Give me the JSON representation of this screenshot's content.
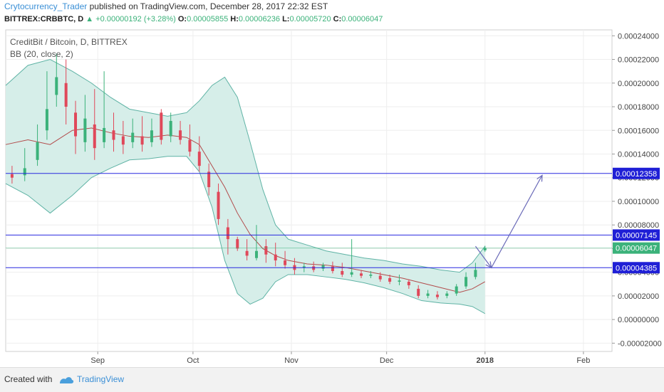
{
  "header": {
    "author": "Crytocurrency_Trader",
    "published": "published on TradingView.com, December 28, 2017 22:32 EST",
    "symbol": "BITTREX:CRBBTC, D",
    "change": "+0.00000192 (+3.28%)",
    "o_label": "O:",
    "o_value": "0.00005855",
    "h_label": "H:",
    "h_value": "0.00006236",
    "l_label": "L:",
    "l_value": "0.00005720",
    "c_label": "C:",
    "c_value": "0.00006047"
  },
  "legend": {
    "pair": "CreditBit / Bitcoin, D, BITTREX",
    "indicator": "BB (20, close, 2)"
  },
  "footer": {
    "created_with": "Created with",
    "brand": "TradingView"
  },
  "colors": {
    "up": "#3bb27a",
    "down": "#e0485a",
    "band_fill": "#d6eee9",
    "band_line": "#5fb3a5",
    "basis": "#b24b4b",
    "hline": "#2929e0",
    "price_line": "#3bb27a",
    "arrow": "#6a6ab8"
  },
  "chart_data": {
    "type": "candlestick",
    "y_axis": {
      "ticks": [
        0.00024,
        0.00022,
        0.0002,
        0.00018,
        0.00016,
        0.00014,
        0.00012,
        0.0001,
        8e-05,
        6e-05,
        4e-05,
        2e-05,
        0.0,
        -2e-05
      ],
      "tick_labels": [
        "0.00024000",
        "0.00022000",
        "0.00020000",
        "0.00018000",
        "0.00016000",
        "0.00014000",
        "0.00012000",
        "0.00010000",
        "0.00008000",
        "0.00006000",
        "0.00004000",
        "0.00002000",
        "0.00000000",
        "-0.00002000"
      ],
      "ylim": [
        -2.7e-05,
        0.000245
      ]
    },
    "x_axis": {
      "labels": [
        "Sep",
        "Oct",
        "Nov",
        "Dec",
        "2018",
        "Feb"
      ],
      "label_days": [
        30,
        60,
        91,
        121,
        152,
        183
      ],
      "xlim": [
        1,
        192
      ]
    },
    "horizontal_lines": [
      {
        "value": 0.00012358,
        "label": "0.00012358"
      },
      {
        "value": 7.145e-05,
        "label": "0.00007145"
      },
      {
        "value": 4.385e-05,
        "label": "0.00004385"
      }
    ],
    "last_price": {
      "value": 6.047e-05,
      "label": "0.00006047"
    },
    "candles": [
      [
        3,
        0.000123,
        0.00012,
        0.00013,
        0.000115
      ],
      [
        7,
        0.000122,
        0.000128,
        0.000145,
        0.000117
      ],
      [
        11,
        0.000135,
        0.00015,
        0.000165,
        0.00013
      ],
      [
        14,
        0.00016,
        0.000178,
        0.00021,
        0.000152
      ],
      [
        17,
        0.00019,
        0.000205,
        0.000225,
        0.00018
      ],
      [
        20,
        0.0002,
        0.00018,
        0.00022,
        0.000165
      ],
      [
        23,
        0.000175,
        0.000155,
        0.000185,
        0.00014
      ],
      [
        26,
        0.00015,
        0.00017,
        0.00019,
        0.000142
      ],
      [
        29,
        0.000165,
        0.000145,
        0.000195,
        0.000135
      ],
      [
        32,
        0.00015,
        0.000162,
        0.00021,
        0.000145
      ],
      [
        35,
        0.00016,
        0.000152,
        0.000175,
        0.000142
      ],
      [
        38,
        0.000155,
        0.000148,
        0.000168,
        0.00014
      ],
      [
        41,
        0.00015,
        0.000158,
        0.00017,
        0.000145
      ],
      [
        44,
        0.000155,
        0.000148,
        0.000172,
        0.000142
      ],
      [
        47,
        0.00015,
        0.00016,
        0.00017,
        0.000146
      ],
      [
        50,
        0.000175,
        0.000152,
        0.000178,
        0.000148
      ],
      [
        53,
        0.000155,
        0.000168,
        0.000175,
        0.00015
      ],
      [
        56,
        0.00016,
        0.000152,
        0.000168,
        0.000148
      ],
      [
        59,
        0.000152,
        0.000142,
        0.000165,
        0.000138
      ],
      [
        62,
        0.000142,
        0.00013,
        0.000155,
        0.000125
      ],
      [
        65,
        0.000125,
        0.000112,
        0.000132,
        0.000105
      ],
      [
        68,
        0.000108,
        8.5e-05,
        0.000115,
        8e-05
      ],
      [
        71,
        7.8e-05,
        6.8e-05,
        8.5e-05,
        5.5e-05
      ],
      [
        74,
        6.8e-05,
        6e-05,
        7e-05,
        5.8e-05
      ],
      [
        77,
        5.8e-05,
        5.4e-05,
        6.8e-05,
        5e-05
      ],
      [
        80,
        5.2e-05,
        5.8e-05,
        8e-05,
        5e-05
      ],
      [
        83,
        6.2e-05,
        5.5e-05,
        6.8e-05,
        4.8e-05
      ],
      [
        86,
        5.5e-05,
        5e-05,
        6.5e-05,
        4.5e-05
      ],
      [
        89,
        5e-05,
        4.6e-05,
        5.8e-05,
        4.3e-05
      ],
      [
        92,
        4.6e-05,
        4.2e-05,
        5.2e-05,
        3.8e-05
      ],
      [
        95,
        4.4e-05,
        4.5e-05,
        4.8e-05,
        4e-05
      ],
      [
        98,
        4.5e-05,
        4.2e-05,
        4.9e-05,
        4e-05
      ],
      [
        101,
        4.3e-05,
        4.6e-05,
        4.8e-05,
        4.1e-05
      ],
      [
        104,
        4.5e-05,
        4.1e-05,
        4.9e-05,
        3.9e-05
      ],
      [
        107,
        4.1e-05,
        3.8e-05,
        4.8e-05,
        3.6e-05
      ],
      [
        110,
        3.8e-05,
        4e-05,
        6.8e-05,
        3.6e-05
      ],
      [
        113,
        3.9e-05,
        3.7e-05,
        4.2e-05,
        3.5e-05
      ],
      [
        116,
        3.7e-05,
        3.8e-05,
        4.1e-05,
        3.5e-05
      ],
      [
        119,
        3.7e-05,
        3.4e-05,
        4e-05,
        3.2e-05
      ],
      [
        122,
        3.5e-05,
        3.2e-05,
        3.8e-05,
        3e-05
      ],
      [
        125,
        3.2e-05,
        3.3e-05,
        3.8e-05,
        2.9e-05
      ],
      [
        128,
        3.2e-05,
        2.9e-05,
        3.4e-05,
        2.6e-05
      ],
      [
        131,
        2.6e-05,
        2e-05,
        2.9e-05,
        1.8e-05
      ],
      [
        134,
        2e-05,
        2.2e-05,
        2.5e-05,
        1.8e-05
      ],
      [
        137,
        2.1e-05,
        1.9e-05,
        2.4e-05,
        1.7e-05
      ],
      [
        140,
        2e-05,
        2.2e-05,
        2.4e-05,
        1.8e-05
      ],
      [
        143,
        2.2e-05,
        2.8e-05,
        3e-05,
        2e-05
      ],
      [
        146,
        2.8e-05,
        3.6e-05,
        4e-05,
        2.6e-05
      ],
      [
        149,
        3.6e-05,
        4.2e-05,
        4.8e-05,
        3.4e-05
      ],
      [
        152,
        5.8553e-05,
        6.047e-05,
        6.236e-05,
        5.72e-05
      ]
    ],
    "bollinger": [
      [
        1,
        0.000198,
        0.000148,
        0.000115
      ],
      [
        8,
        0.000215,
        0.000152,
        0.000105
      ],
      [
        15,
        0.00022,
        0.000148,
        9e-05
      ],
      [
        22,
        0.00021,
        0.00016,
        0.000105
      ],
      [
        28,
        0.0002,
        0.000162,
        0.00012
      ],
      [
        34,
        0.000188,
        0.000158,
        0.000128
      ],
      [
        40,
        0.000178,
        0.000155,
        0.000135
      ],
      [
        46,
        0.000175,
        0.000154,
        0.000136
      ],
      [
        52,
        0.000172,
        0.000156,
        0.000138
      ],
      [
        58,
        0.000175,
        0.000154,
        0.000138
      ],
      [
        62,
        0.000185,
        0.000148,
        0.000125
      ],
      [
        66,
        0.000198,
        0.00013,
        9.5e-05
      ],
      [
        70,
        0.000205,
        0.000112,
        5e-05
      ],
      [
        74,
        0.000188,
        9e-05,
        2.2e-05
      ],
      [
        78,
        0.00015,
        7.2e-05,
        1.3e-05
      ],
      [
        82,
        0.00011,
        6e-05,
        1.8e-05
      ],
      [
        86,
        8e-05,
        5.4e-05,
        3.2e-05
      ],
      [
        90,
        6.8e-05,
        5e-05,
        3.8e-05
      ],
      [
        96,
        6.3e-05,
        4.7e-05,
        3.8e-05
      ],
      [
        102,
        5.8e-05,
        4.6e-05,
        3.6e-05
      ],
      [
        108,
        5.5e-05,
        4.4e-05,
        3.4e-05
      ],
      [
        114,
        5.2e-05,
        4.1e-05,
        3.1e-05
      ],
      [
        120,
        5e-05,
        3.8e-05,
        2.7e-05
      ],
      [
        126,
        4.7e-05,
        3.5e-05,
        2.2e-05
      ],
      [
        132,
        4.5e-05,
        3.1e-05,
        1.6e-05
      ],
      [
        138,
        4.2e-05,
        2.7e-05,
        1.4e-05
      ],
      [
        144,
        4e-05,
        2.3e-05,
        1.3e-05
      ],
      [
        148,
        4.8e-05,
        2.6e-05,
        1.1e-05
      ],
      [
        152,
        6.2e-05,
        3.2e-05,
        5e-06
      ]
    ],
    "projection": [
      [
        149,
        6.2e-05
      ],
      [
        154,
        4.385e-05
      ],
      [
        170,
        0.000122
      ]
    ]
  }
}
